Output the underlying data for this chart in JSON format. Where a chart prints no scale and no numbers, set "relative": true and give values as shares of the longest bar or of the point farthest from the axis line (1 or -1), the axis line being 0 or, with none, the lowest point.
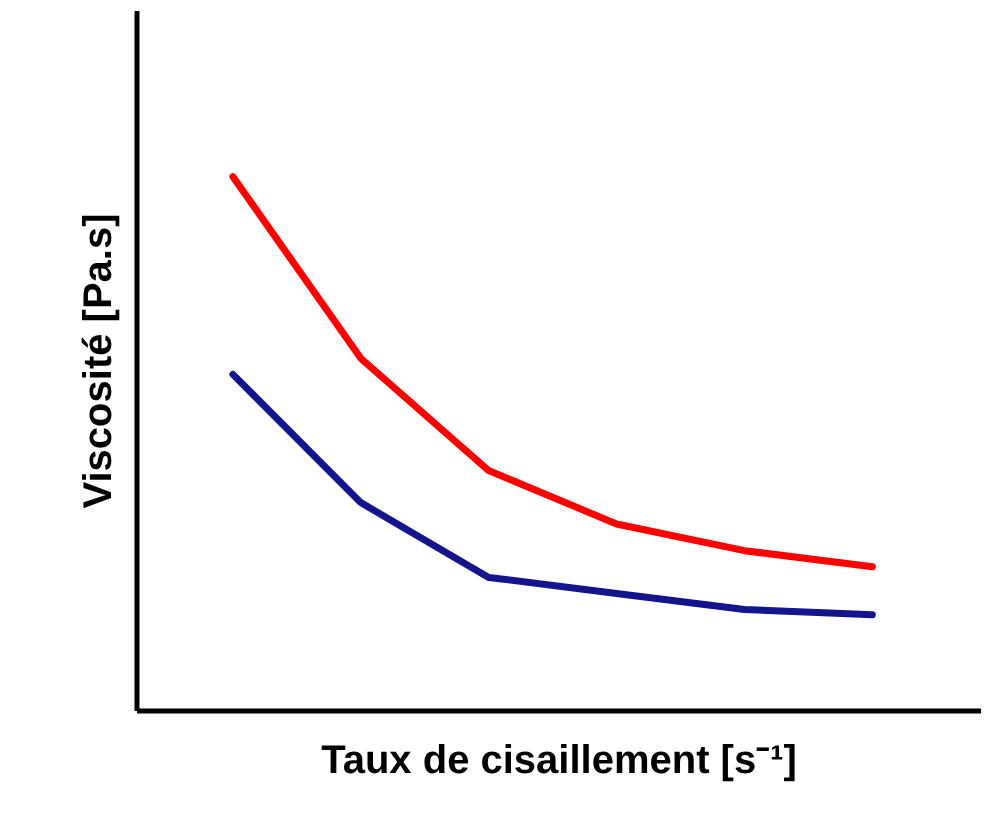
{
  "chart_data": {
    "type": "line",
    "relative": true,
    "xlabel": "Taux de cisaillement [s⁻¹]",
    "ylabel": "Viscosité [Pa.s]",
    "tick_labels": false,
    "marker": "none",
    "line_style": "solid",
    "categories": [
      null,
      null,
      null,
      null,
      null,
      null
    ],
    "series": [
      {
        "color": "#ff0000",
        "values": [
          1.0,
          0.66,
          0.45,
          0.35,
          0.3,
          0.27
        ]
      },
      {
        "color": "#14148c",
        "values": [
          0.63,
          0.39,
          0.25,
          0.22,
          0.19,
          0.18
        ]
      }
    ]
  }
}
